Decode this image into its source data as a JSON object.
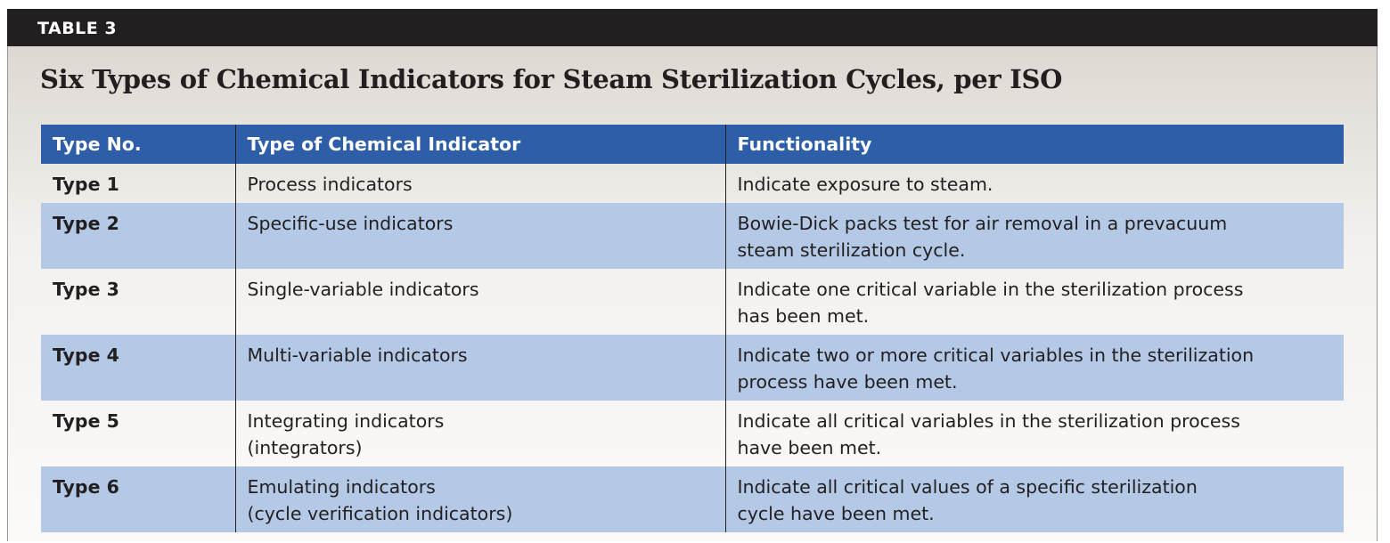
{
  "header": {
    "label": "TABLE 3"
  },
  "title": "Six Types of Chemical Indicators for Steam Sterilization Cycles, per ISO",
  "table": {
    "columns": [
      "Type No.",
      "Type of Chemical Indicator",
      "Functionality"
    ],
    "rows": [
      [
        "Type 1",
        [
          "Process indicators"
        ],
        [
          "Indicate exposure to steam."
        ]
      ],
      [
        "Type 2",
        [
          "Specific-use indicators"
        ],
        [
          "Bowie-Dick packs test for air removal in a prevacuum",
          "steam sterilization cycle."
        ]
      ],
      [
        "Type 3",
        [
          "Single-variable indicators"
        ],
        [
          "Indicate one critical variable in the sterilization process",
          "has been met."
        ]
      ],
      [
        "Type 4",
        [
          "Multi-variable indicators"
        ],
        [
          "Indicate two or more critical variables in the sterilization",
          "process have been met."
        ]
      ],
      [
        "Type 5",
        [
          "Integrating indicators",
          "(integrators)"
        ],
        [
          "Indicate all critical variables in the sterilization process",
          "have been met."
        ]
      ],
      [
        "Type 6",
        [
          "Emulating indicators",
          "(cycle verification indicators)"
        ],
        [
          "Indicate all critical values of a specific sterilization",
          "cycle have been met."
        ]
      ]
    ]
  }
}
